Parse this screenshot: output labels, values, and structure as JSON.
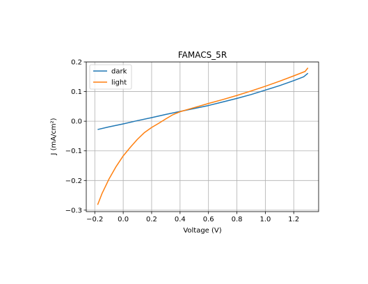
{
  "chart_data": {
    "type": "line",
    "title": "FAMACS_5R",
    "xlabel": "Voltage (V)",
    "ylabel": "J (mA/cm²)",
    "xlim": [
      -0.26,
      1.375
    ],
    "ylim": [
      -0.305,
      0.2
    ],
    "xticks": [
      -0.2,
      0.0,
      0.2,
      0.4,
      0.6,
      0.8,
      1.0,
      1.2
    ],
    "xtick_labels": [
      "−0.2",
      "0.0",
      "0.2",
      "0.4",
      "0.6",
      "0.8",
      "1.0",
      "1.2"
    ],
    "yticks": [
      -0.3,
      -0.2,
      -0.1,
      0.0,
      0.1,
      0.2
    ],
    "ytick_labels": [
      "−0.3",
      "−0.2",
      "−0.1",
      "0.0",
      "0.1",
      "0.2"
    ],
    "grid": true,
    "legend_position": "upper-left",
    "series": [
      {
        "name": "dark",
        "color": "#1f77b4",
        "x": [
          -0.18,
          -0.1,
          0.0,
          0.1,
          0.2,
          0.3,
          0.4,
          0.5,
          0.6,
          0.7,
          0.8,
          0.9,
          1.0,
          1.1,
          1.2,
          1.27,
          1.3
        ],
        "y": [
          -0.028,
          -0.019,
          -0.009,
          0.002,
          0.012,
          0.023,
          0.033,
          0.043,
          0.053,
          0.065,
          0.077,
          0.09,
          0.105,
          0.12,
          0.137,
          0.15,
          0.162
        ]
      },
      {
        "name": "light",
        "color": "#ff7f0e",
        "x": [
          -0.18,
          -0.15,
          -0.1,
          -0.05,
          0.0,
          0.05,
          0.1,
          0.15,
          0.2,
          0.25,
          0.3,
          0.35,
          0.4,
          0.5,
          0.6,
          0.7,
          0.8,
          0.9,
          1.0,
          1.1,
          1.2,
          1.28,
          1.3
        ],
        "y": [
          -0.282,
          -0.245,
          -0.195,
          -0.153,
          -0.117,
          -0.088,
          -0.061,
          -0.038,
          -0.021,
          -0.007,
          0.008,
          0.022,
          0.032,
          0.046,
          0.06,
          0.073,
          0.087,
          0.102,
          0.118,
          0.135,
          0.153,
          0.168,
          0.18
        ]
      }
    ]
  }
}
